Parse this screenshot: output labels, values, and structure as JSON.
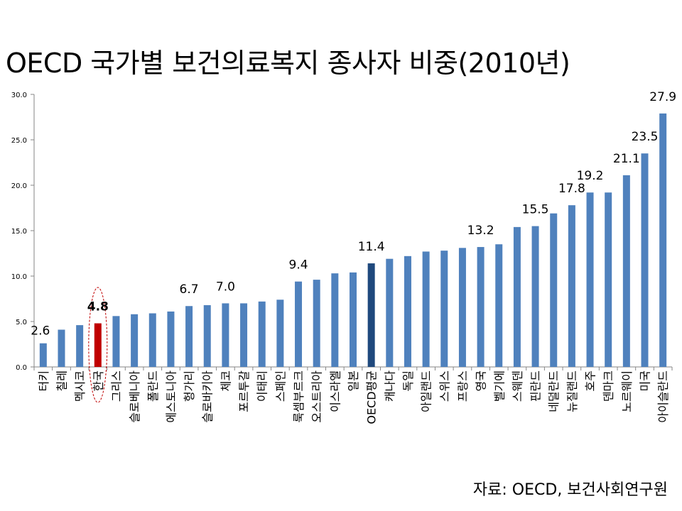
{
  "title": "OECD 국가별 보건의료복지 종사자 비중(2010년)",
  "source": "자료: OECD, 보건사회연구원",
  "colors": {
    "bar": "#4f81bd",
    "korea": "#c00000",
    "oecd_average": "#1f497d",
    "highlight_ring": "#c00000"
  },
  "chart_data": {
    "type": "bar",
    "title": "OECD 국가별 보건의료복지 종사자 비중(2010년)",
    "xlabel": "",
    "ylabel": "",
    "ylim": [
      0,
      30
    ],
    "yticks": [
      "0.0",
      "5.0",
      "10.0",
      "15.0",
      "20.0",
      "25.0",
      "30.0"
    ],
    "grid": false,
    "legend": "none",
    "categories": [
      "터키",
      "칠레",
      "멕시코",
      "한국",
      "그리스",
      "슬로베니아",
      "폴란드",
      "에스토니아",
      "헝가리",
      "슬로바키아",
      "체코",
      "포르투갈",
      "이태리",
      "스페인",
      "룩셈부르크",
      "오스트리아",
      "이스라엘",
      "일본",
      "OECD평균",
      "캐나다",
      "독일",
      "아일랜드",
      "스위스",
      "프랑스",
      "영국",
      "벨기에",
      "스웨덴",
      "핀란드",
      "네덜란드",
      "뉴질랜드",
      "호주",
      "덴마크",
      "노르웨이",
      "미국",
      "아이슬란드"
    ],
    "values": [
      2.6,
      4.1,
      4.6,
      4.8,
      5.6,
      5.8,
      5.9,
      6.1,
      6.7,
      6.8,
      7.0,
      7.0,
      7.2,
      7.4,
      9.4,
      9.6,
      10.3,
      10.4,
      11.4,
      11.9,
      12.2,
      12.7,
      12.8,
      13.1,
      13.2,
      13.5,
      15.4,
      15.5,
      16.9,
      17.8,
      19.2,
      19.2,
      21.1,
      23.5,
      27.9
    ],
    "data_labels": [
      {
        "index": 0,
        "text": "2.6"
      },
      {
        "index": 3,
        "text": "4.8"
      },
      {
        "index": 8,
        "text": "6.7"
      },
      {
        "index": 10,
        "text": "7.0"
      },
      {
        "index": 14,
        "text": "9.4"
      },
      {
        "index": 18,
        "text": "11.4"
      },
      {
        "index": 24,
        "text": "13.2"
      },
      {
        "index": 27,
        "text": "15.5"
      },
      {
        "index": 29,
        "text": "17.8"
      },
      {
        "index": 30,
        "text": "19.2"
      },
      {
        "index": 32,
        "text": "21.1"
      },
      {
        "index": 33,
        "text": "23.5"
      },
      {
        "index": 34,
        "text": "27.9"
      }
    ],
    "highlighted_category": "한국",
    "average_category": "OECD평균"
  }
}
